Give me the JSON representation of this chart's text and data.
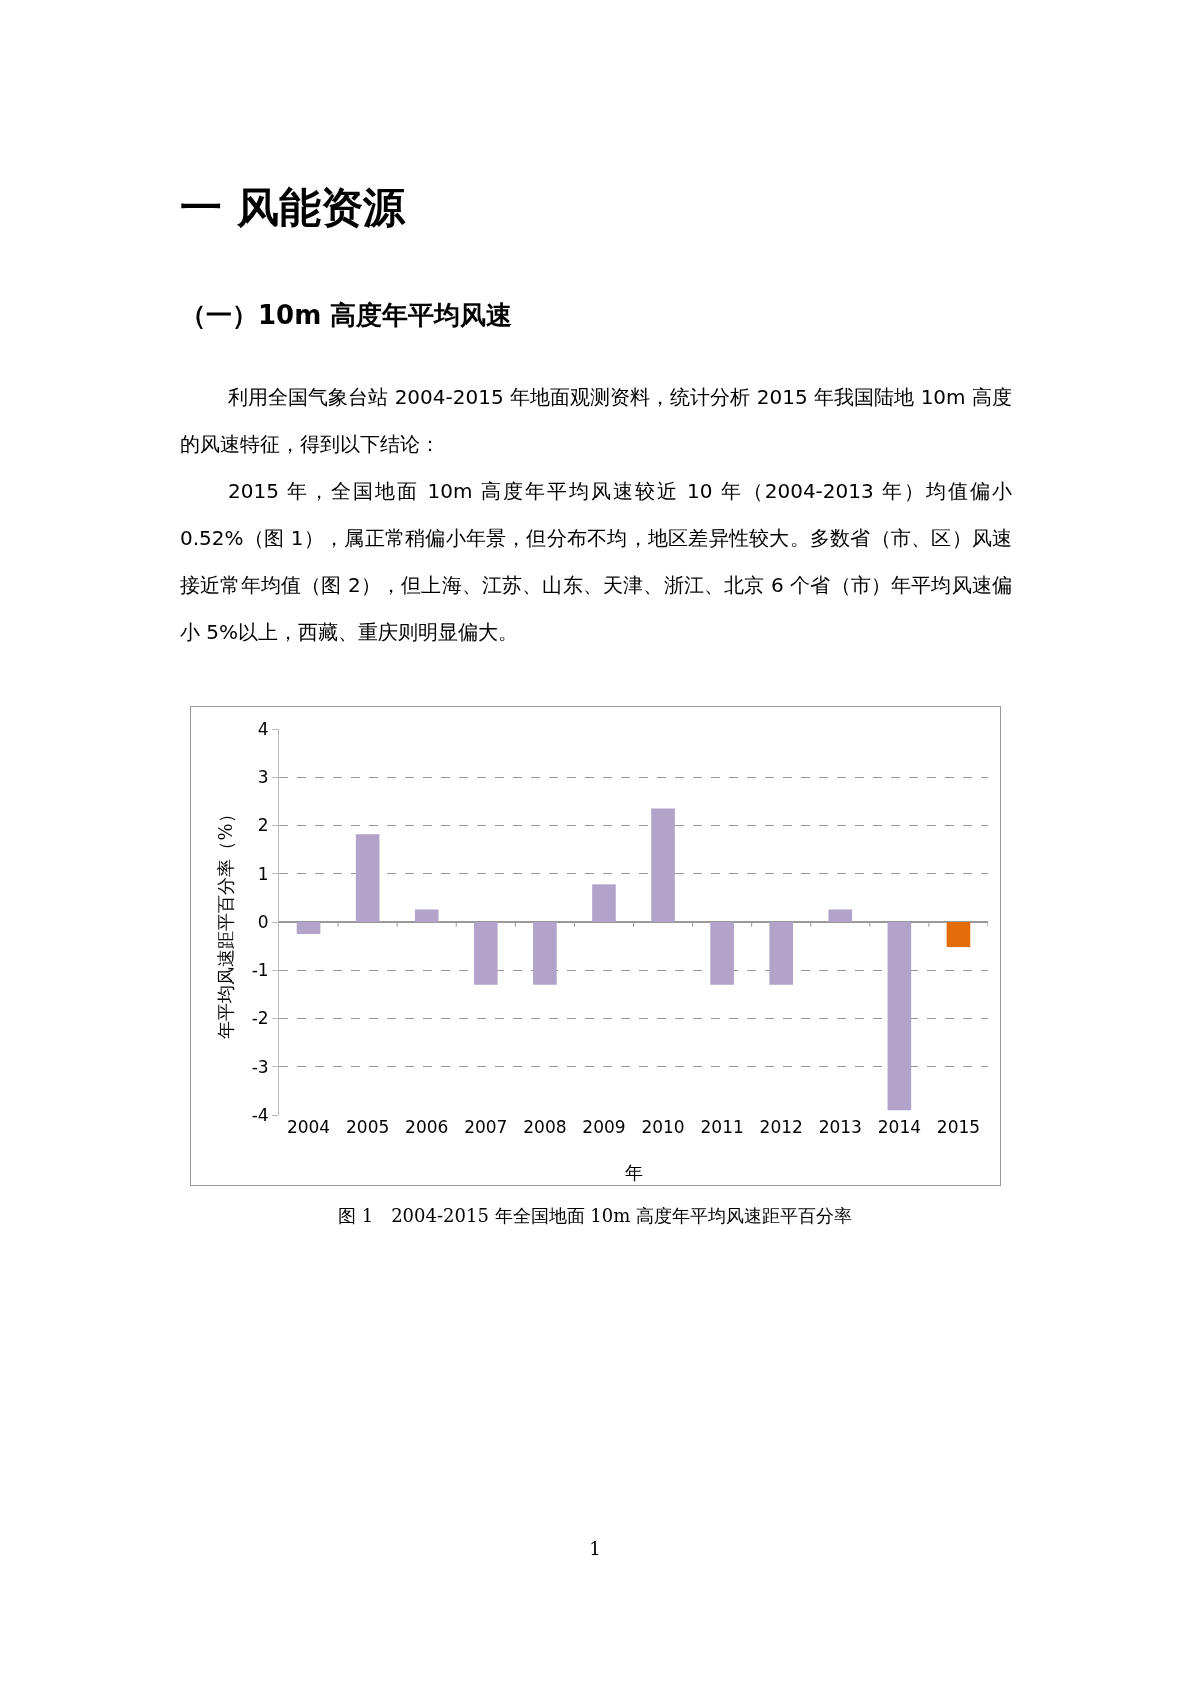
{
  "chart_data": {
    "type": "bar",
    "title": "图 1　2004-2015 年全国地面 10m 高度年平均风速距平百分率",
    "xlabel": "年",
    "ylabel": "年平均风速距平百分率（%）",
    "categories": [
      "2004",
      "2005",
      "2006",
      "2007",
      "2008",
      "2009",
      "2010",
      "2011",
      "2012",
      "2013",
      "2014",
      "2015"
    ],
    "values": [
      -0.25,
      1.82,
      0.26,
      -1.3,
      -1.3,
      0.78,
      2.35,
      -1.3,
      -1.3,
      0.26,
      -3.9,
      -0.52
    ],
    "colors": [
      "#b1a3c9",
      "#b1a3c9",
      "#b1a3c9",
      "#b1a3c9",
      "#b1a3c9",
      "#b1a3c9",
      "#b1a3c9",
      "#b1a3c9",
      "#b1a3c9",
      "#b1a3c9",
      "#b1a3c9",
      "#e46c0a"
    ],
    "ylim": [
      -4,
      4
    ],
    "yticks": [
      -4,
      -3,
      -2,
      -1,
      0,
      1,
      2,
      3,
      4
    ],
    "grid": "y",
    "legend": false,
    "annotations": [
      "一  风能资源",
      "（一）10m 高度年平均风速",
      "利用全国气象台站 2004-2015 年地面观测资料，统计分析 2015 年我国陆地 10m 高度的风速特征，得到以下结论：",
      "2015 年，全国地面 10m 高度年平均风速较近 10 年（2004-2013 年）均值偏小 0.52%（图 1），属正常稍偏小年景，但分布不均，地区差异性较大。多数省（市、区）风速接近常年均值（图 2），但上海、江苏、山东、天津、浙江、北京 6 个省（市）年平均风速偏小 5%以上，西藏、重庆则明显偏大。",
      "1"
    ]
  }
}
